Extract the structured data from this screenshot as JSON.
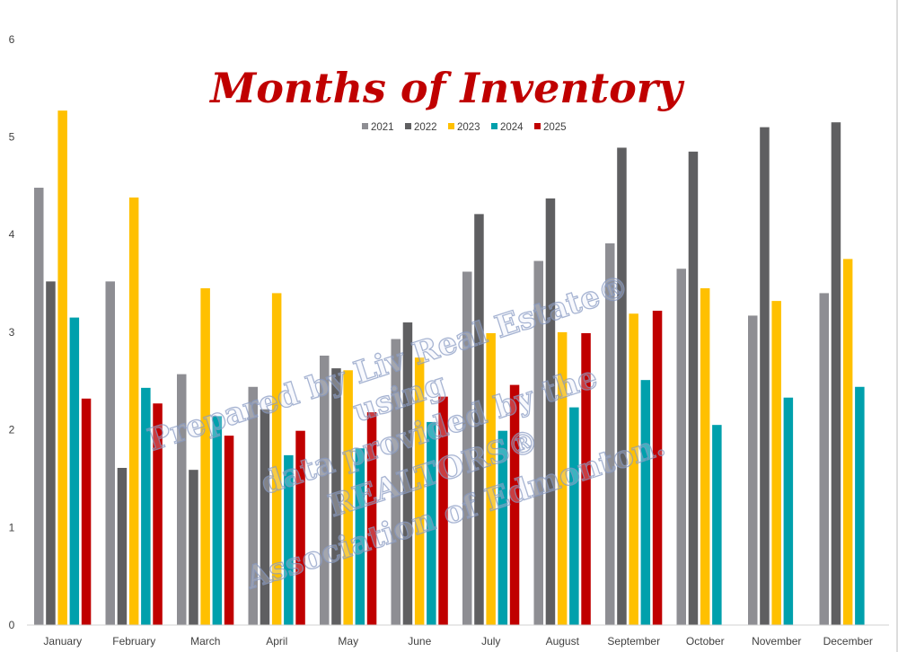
{
  "chart_data": {
    "type": "bar",
    "title": "Months of Inventory",
    "xlabel": "",
    "ylabel": "",
    "ylim": [
      0,
      6
    ],
    "yticks": [
      "0",
      "1",
      "2",
      "3",
      "4",
      "5",
      "6"
    ],
    "grid": false,
    "legend_position": "top-center",
    "categories": [
      "January",
      "February",
      "March",
      "April",
      "May",
      "June",
      "July",
      "August",
      "September",
      "October",
      "November",
      "December"
    ],
    "series": [
      {
        "name": "2021",
        "color": "#8e8e93",
        "values": [
          4.48,
          3.52,
          2.57,
          2.44,
          2.76,
          2.93,
          3.62,
          3.73,
          3.91,
          3.65,
          3.17,
          3.4
        ]
      },
      {
        "name": "2022",
        "color": "#5f5f61",
        "values": [
          3.52,
          1.61,
          1.59,
          2.21,
          2.63,
          3.1,
          4.21,
          4.37,
          4.89,
          4.85,
          5.1,
          5.15
        ]
      },
      {
        "name": "2023",
        "color": "#ffc000",
        "values": [
          5.27,
          4.38,
          3.45,
          3.4,
          2.61,
          2.74,
          2.99,
          3.0,
          3.19,
          3.45,
          3.32,
          3.75
        ]
      },
      {
        "name": "2024",
        "color": "#00a0ac",
        "values": [
          3.15,
          2.43,
          2.14,
          1.74,
          1.81,
          2.08,
          1.99,
          2.23,
          2.51,
          2.05,
          2.33,
          2.44
        ]
      },
      {
        "name": "2025",
        "color": "#c00000",
        "values": [
          2.32,
          2.27,
          1.94,
          1.99,
          2.18,
          2.34,
          2.46,
          2.99,
          3.22,
          null,
          null,
          null
        ]
      }
    ],
    "title_color": "#c00000",
    "watermark": [
      "Prepared by Liv Real Estate®",
      "using",
      "data provided by the",
      "REALTORS®",
      "Association of Edmonton."
    ]
  }
}
